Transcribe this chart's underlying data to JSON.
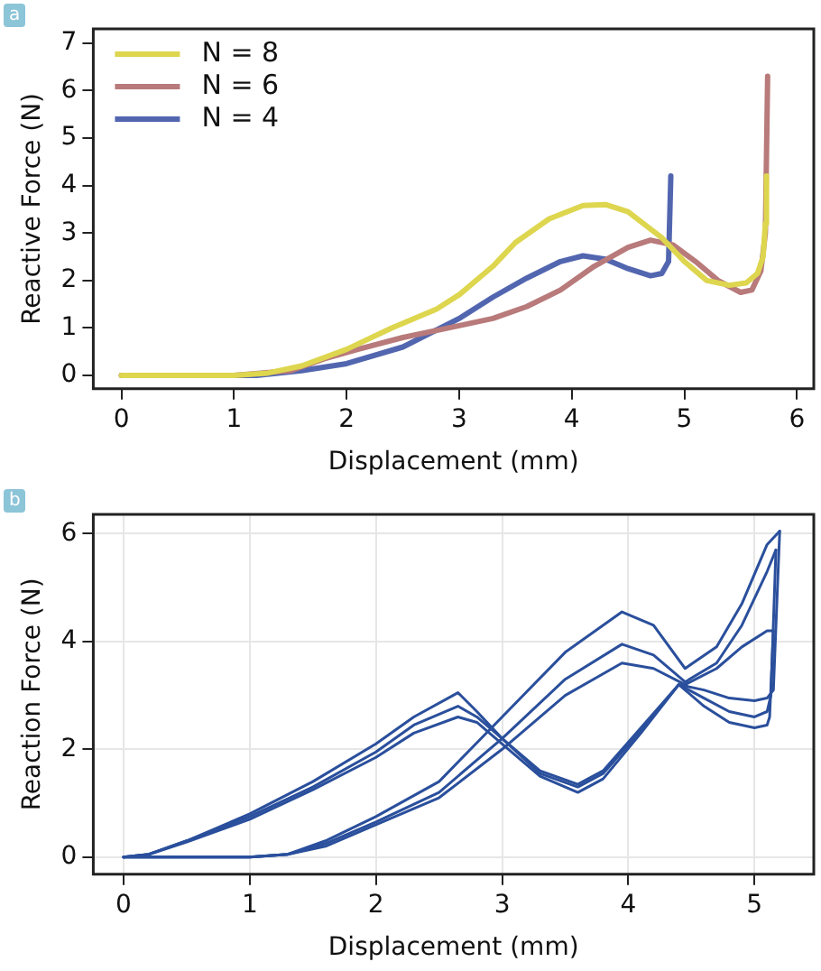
{
  "chart_data": [
    {
      "type": "line",
      "xlabel": "Displacement (mm)",
      "ylabel": "Reactive Force (N)",
      "annotations": [
        "a"
      ],
      "xlim": [
        -0.25,
        6.15
      ],
      "ylim": [
        -0.28,
        7.3
      ],
      "xticks": [
        0,
        1,
        2,
        3,
        4,
        5,
        6
      ],
      "yticks": [
        0,
        1,
        2,
        3,
        4,
        5,
        6,
        7
      ],
      "grid": false,
      "legend": "top left",
      "series": [
        {
          "name": "N = 8",
          "color": "#ddd64e",
          "x": [
            0,
            1,
            1.3,
            1.6,
            2,
            2.4,
            2.8,
            3,
            3.3,
            3.5,
            3.8,
            4.1,
            4.3,
            4.5,
            4.8,
            5,
            5.2,
            5.4,
            5.55,
            5.65,
            5.7,
            5.72,
            5.73
          ],
          "values": [
            0,
            0,
            0.05,
            0.2,
            0.55,
            1,
            1.4,
            1.7,
            2.3,
            2.8,
            3.3,
            3.58,
            3.6,
            3.45,
            2.9,
            2.4,
            2,
            1.9,
            1.95,
            2.15,
            2.5,
            3.2,
            4.2
          ]
        },
        {
          "name": "N = 6",
          "color": "#b87a7a",
          "x": [
            0,
            1,
            1.5,
            1.8,
            2.1,
            2.5,
            3,
            3.3,
            3.6,
            3.9,
            4.2,
            4.5,
            4.7,
            4.9,
            5.1,
            5.3,
            5.5,
            5.6,
            5.68,
            5.72,
            5.74
          ],
          "values": [
            0,
            0,
            0.1,
            0.35,
            0.55,
            0.8,
            1.05,
            1.2,
            1.45,
            1.8,
            2.3,
            2.7,
            2.85,
            2.75,
            2.4,
            2,
            1.75,
            1.8,
            2.2,
            3,
            6.3
          ]
        },
        {
          "name": "N = 4",
          "color": "#5266b0",
          "x": [
            0,
            1.2,
            1.6,
            2,
            2.5,
            3,
            3.3,
            3.6,
            3.9,
            4.1,
            4.3,
            4.5,
            4.7,
            4.8,
            4.86,
            4.88
          ],
          "values": [
            0,
            0,
            0.1,
            0.25,
            0.6,
            1.2,
            1.65,
            2.05,
            2.4,
            2.52,
            2.45,
            2.25,
            2.1,
            2.15,
            2.4,
            4.2
          ]
        }
      ]
    },
    {
      "type": "line",
      "xlabel": "Displacement (mm)",
      "ylabel": "Reaction Force (N)",
      "annotations": [
        "b"
      ],
      "xlim": [
        -0.24,
        5.47
      ],
      "ylim": [
        -0.32,
        6.36
      ],
      "xticks": [
        0,
        1,
        2,
        3,
        4,
        5
      ],
      "yticks": [
        0,
        2,
        4,
        6
      ],
      "grid": true,
      "series": [
        {
          "color": "#2a4f9c",
          "x": [
            0,
            0.5,
            1,
            1.3,
            1.6,
            2,
            2.5,
            3,
            3.5,
            3.95,
            4.2,
            4.45,
            4.7,
            4.9,
            5.1,
            5.2
          ],
          "values": [
            0,
            0,
            0,
            0.05,
            0.3,
            0.75,
            1.4,
            2.6,
            3.8,
            4.55,
            4.3,
            3.5,
            3.9,
            4.7,
            5.8,
            6.05
          ]
        },
        {
          "color": "#2a4f9c",
          "x": [
            0,
            0.2,
            0.5,
            1,
            1.5,
            2,
            2.3,
            2.65,
            2.8,
            3,
            3.3,
            3.6,
            3.8,
            4.1,
            4.4,
            4.6,
            4.8,
            5,
            5.1,
            5.15,
            5.2
          ],
          "values": [
            0,
            0.05,
            0.3,
            0.8,
            1.4,
            2.1,
            2.6,
            3.05,
            2.7,
            2.2,
            1.6,
            1.35,
            1.6,
            2.4,
            3.2,
            3.1,
            2.95,
            2.9,
            2.95,
            3.1,
            6.05
          ]
        },
        {
          "color": "#2a4f9c",
          "x": [
            0,
            0.5,
            1,
            1.3,
            1.6,
            2,
            2.5,
            3,
            3.5,
            3.95,
            4.2,
            4.45,
            4.7,
            4.9,
            5.1,
            5.17
          ],
          "values": [
            0,
            0,
            0,
            0.05,
            0.25,
            0.65,
            1.2,
            2.2,
            3.3,
            3.95,
            3.75,
            3.25,
            3.6,
            4.3,
            5.3,
            5.7
          ]
        },
        {
          "color": "#2a4f9c",
          "x": [
            0,
            0.2,
            0.5,
            1,
            1.5,
            2,
            2.3,
            2.65,
            2.8,
            3,
            3.3,
            3.6,
            3.8,
            4.1,
            4.4,
            4.6,
            4.8,
            5,
            5.1,
            5.13,
            5.17
          ],
          "values": [
            0,
            0.05,
            0.3,
            0.75,
            1.3,
            1.95,
            2.45,
            2.8,
            2.6,
            2.2,
            1.55,
            1.3,
            1.55,
            2.35,
            3.2,
            2.95,
            2.7,
            2.6,
            2.7,
            3,
            5.7
          ]
        },
        {
          "color": "#2a4f9c",
          "x": [
            0,
            0.5,
            1,
            1.3,
            1.6,
            2,
            2.5,
            3,
            3.5,
            3.95,
            4.2,
            4.45,
            4.7,
            4.9,
            5.1,
            5.15
          ],
          "values": [
            0,
            0,
            0,
            0.05,
            0.2,
            0.6,
            1.1,
            2,
            3,
            3.6,
            3.5,
            3.2,
            3.5,
            3.9,
            4.2,
            4.2
          ]
        },
        {
          "color": "#2a4f9c",
          "x": [
            0,
            0.2,
            0.5,
            1,
            1.5,
            2,
            2.3,
            2.65,
            2.8,
            3,
            3.3,
            3.6,
            3.8,
            4.1,
            4.4,
            4.6,
            4.8,
            5,
            5.1,
            5.12,
            5.15
          ],
          "values": [
            0,
            0.05,
            0.28,
            0.7,
            1.25,
            1.85,
            2.3,
            2.6,
            2.5,
            2.1,
            1.5,
            1.2,
            1.45,
            2.3,
            3.2,
            2.8,
            2.5,
            2.4,
            2.45,
            2.6,
            4.2
          ]
        }
      ]
    }
  ]
}
